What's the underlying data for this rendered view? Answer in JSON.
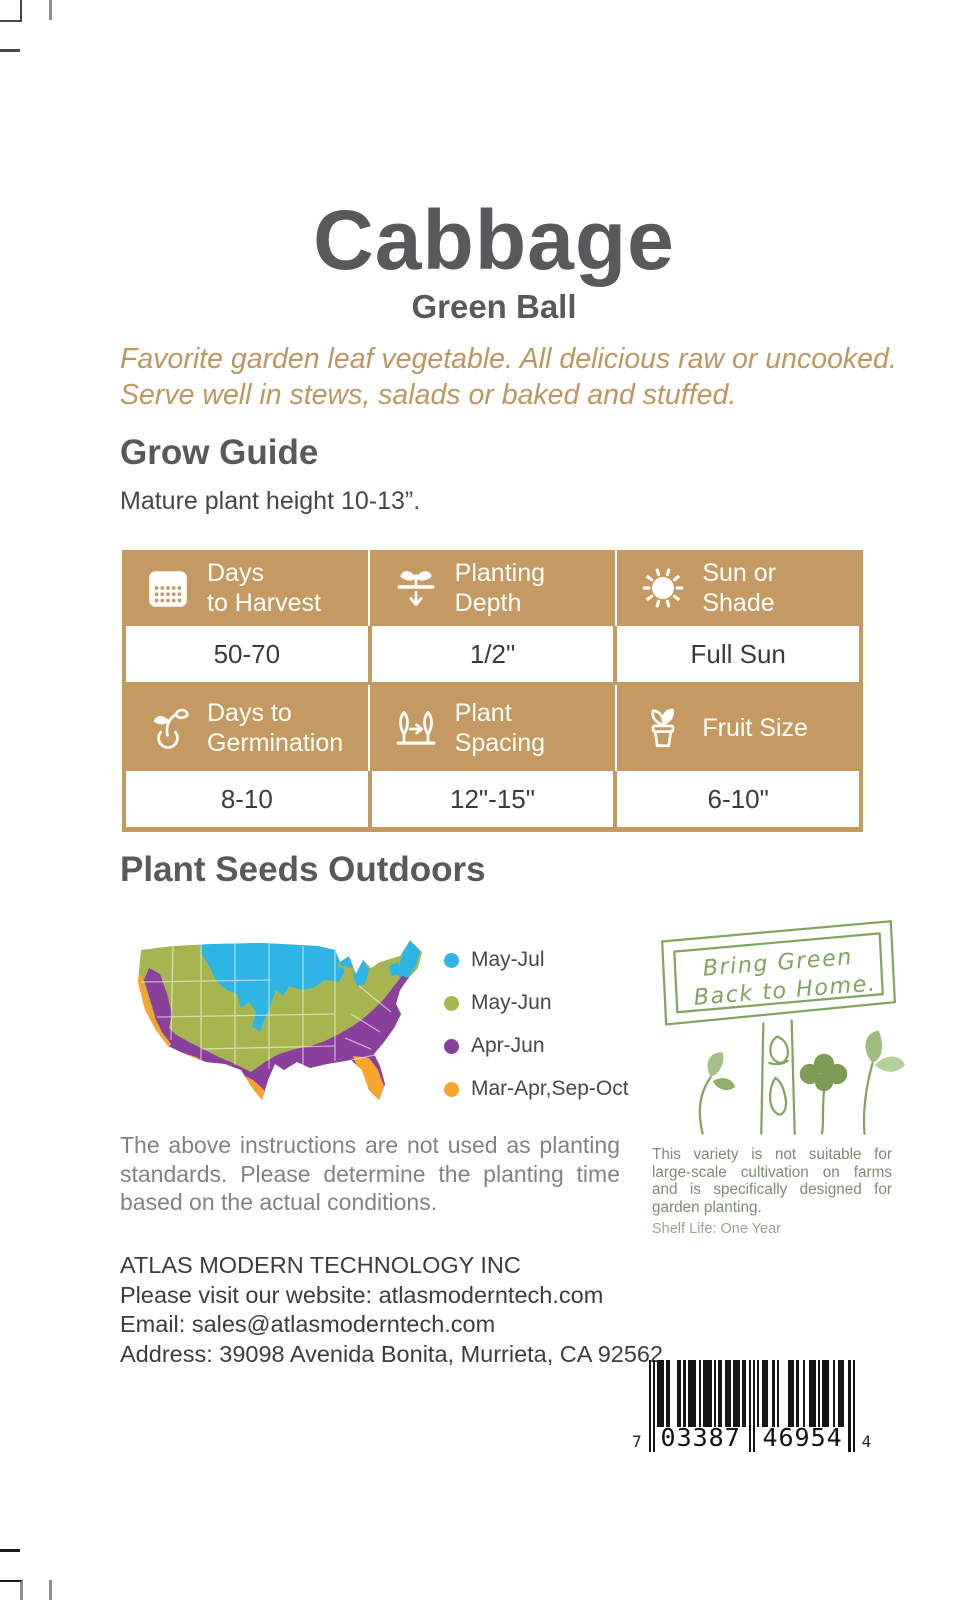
{
  "page": {
    "title": "Cabbage",
    "subtitle": "Green Ball",
    "description_line1": "Favorite garden leaf vegetable. All delicious raw or uncooked.",
    "description_line2": "Serve well in stews, salads or baked and stuffed."
  },
  "grow_guide": {
    "heading": "Grow Guide",
    "note": "Mature plant height 10-13”.",
    "cells": [
      {
        "label": "Days to Harvest",
        "line1": "Days",
        "line2": "to Harvest",
        "icon": "calendar-icon",
        "value": "50-70"
      },
      {
        "label": "Planting Depth",
        "line1": "Planting",
        "line2": "Depth",
        "icon": "planting-depth-icon",
        "value": "1/2\""
      },
      {
        "label": "Sun or Shade",
        "line1": "Sun or",
        "line2": "Shade",
        "icon": "sun-icon",
        "value": "Full Sun"
      },
      {
        "label": "Days to Germination",
        "line1": "Days to",
        "line2": "Germination",
        "icon": "germination-icon",
        "value": "8-10"
      },
      {
        "label": "Plant Spacing",
        "line1": "Plant",
        "line2": "Spacing",
        "icon": "plant-spacing-icon",
        "value": "12\"-15\""
      },
      {
        "label": "Fruit Size",
        "line1": "Fruit Size",
        "icon": "fruit-pot-icon",
        "value": "6-10\""
      }
    ]
  },
  "planting": {
    "heading": "Plant Seeds Outdoors",
    "legend": [
      {
        "label": "May-Jul",
        "color": "#2fb4e6"
      },
      {
        "label": "May-Jun",
        "color": "#a6b54f"
      },
      {
        "label": "Apr-Jun",
        "color": "#8a3f9c"
      },
      {
        "label": "Mar-Apr,Sep-Oct",
        "color": "#f8a52e"
      }
    ],
    "disclaimer": "The above instructions are not used as planting standards. Please determine the planting time based on the actual conditions."
  },
  "sign": {
    "line1": "Bring Green",
    "line2": "Back to Home.",
    "note": "This variety is not suitable for large-scale cultivation on farms and is specifically designed for garden planting.",
    "shelf_life": "Shelf Life: One Year"
  },
  "company": {
    "name": "ATLAS MODERN TECHNOLOGY INC",
    "website": "Please visit our website: atlasmoderntech.com",
    "email": "Email: sales@atlasmoderntech.com",
    "address": "Address: 39098 Avenida Bonita, Murrieta, CA 92562"
  },
  "barcode": {
    "left_digit": "7",
    "group1": "03387",
    "group2": "46954",
    "right_digit": "4",
    "modules": [
      "101",
      "0111011",
      "0001101",
      "0111101",
      "0111101",
      "0110111",
      "0111011",
      "01010",
      "1011100",
      "1010000",
      "1110100",
      "1001110",
      "1011100",
      "1011100",
      "101"
    ]
  },
  "colors": {
    "accent_tan": "#c49a62",
    "heading_gray": "#58595b",
    "map_blue": "#2fb4e6",
    "map_green": "#a6b54f",
    "map_purple": "#8a3f9c",
    "map_orange": "#f8a52e",
    "sketch_green": "#7fa45e"
  }
}
